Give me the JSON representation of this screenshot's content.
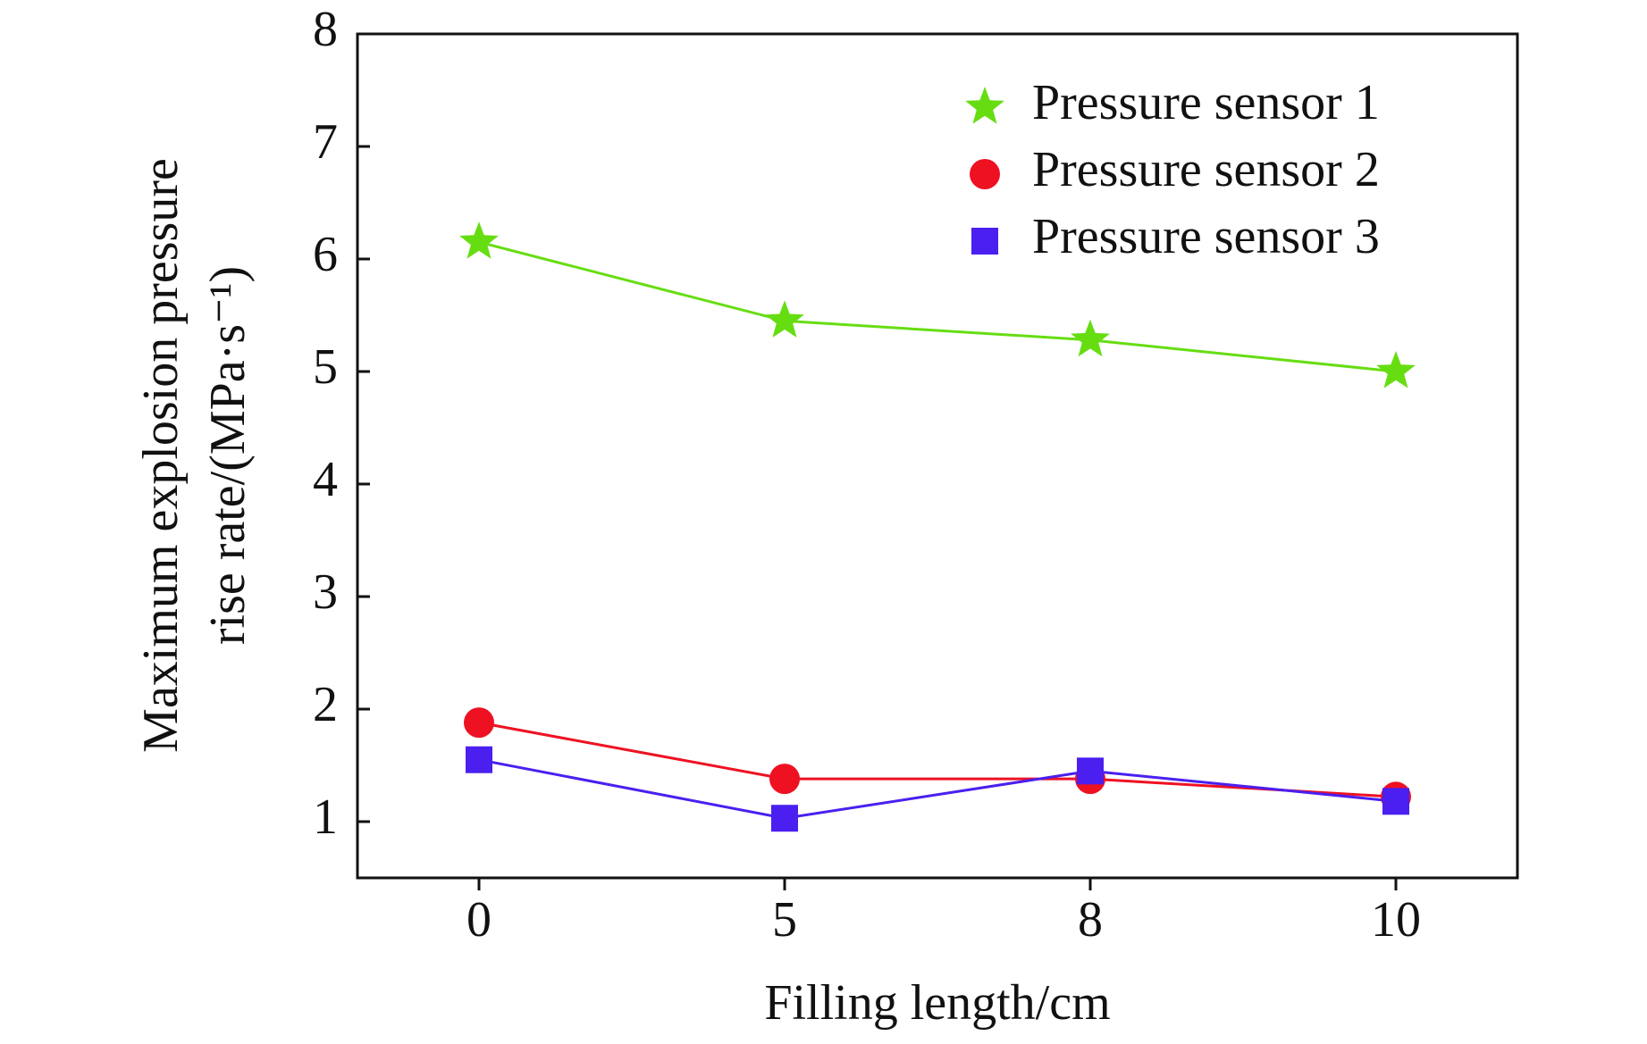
{
  "chart_data": {
    "type": "line",
    "xlabel": "Filling length/cm",
    "ylabel": [
      "Maximum explosion pressure",
      "rise rate/(MPa·s⁻¹)"
    ],
    "categories": [
      "0",
      "5",
      "8",
      "10"
    ],
    "series": [
      {
        "name": "Pressure sensor 1",
        "color": "#66dd11",
        "marker": "star",
        "values": [
          6.15,
          5.45,
          5.28,
          5.0
        ]
      },
      {
        "name": "Pressure sensor 2",
        "color": "#ee1122",
        "marker": "circle",
        "values": [
          1.88,
          1.38,
          1.38,
          1.22
        ]
      },
      {
        "name": "Pressure sensor 3",
        "color": "#4a1ff0",
        "marker": "square",
        "values": [
          1.55,
          1.03,
          1.45,
          1.18
        ]
      }
    ],
    "ylim": [
      0.5,
      8
    ],
    "yticks": [
      1,
      2,
      3,
      4,
      5,
      6,
      7,
      8
    ],
    "legend": "upper right",
    "grid": false
  }
}
